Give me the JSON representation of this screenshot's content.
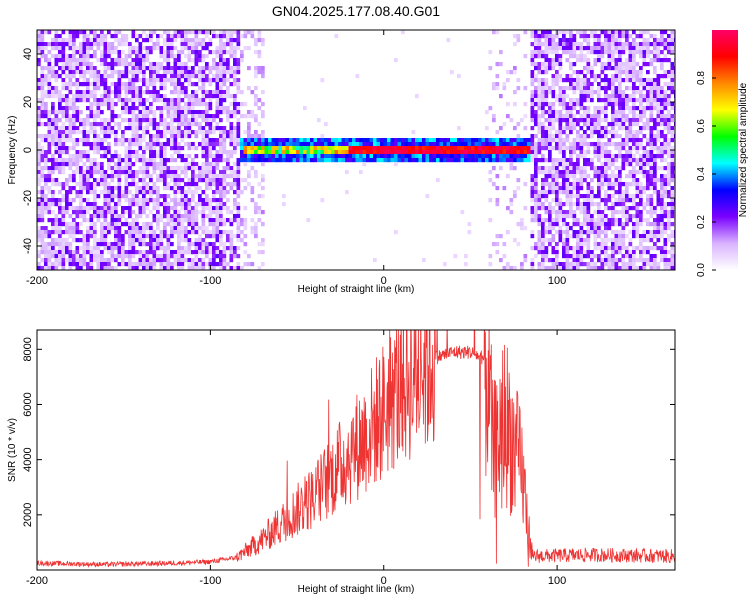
{
  "title": "GN04.2025.177.08.40.G01",
  "chart_data": [
    {
      "type": "heatmap",
      "xlabel": "Height of straight line (km)",
      "ylabel": "Frequency (Hz)",
      "xlim": [
        -200,
        168
      ],
      "ylim": [
        -50,
        50
      ],
      "xticks": [
        -200,
        -100,
        0,
        100
      ],
      "yticks": [
        -40,
        -20,
        0,
        20,
        40
      ],
      "colorbar": {
        "label": "Normalized spectral amplitude",
        "range": [
          0,
          1
        ],
        "ticks": [
          "0.0",
          "0.2",
          "0.4",
          "0.6",
          "0.8"
        ],
        "colors": [
          "#ffffff",
          "#d9b3ff",
          "#7a00ff",
          "#0000ff",
          "#00ffff",
          "#00ff00",
          "#ffff00",
          "#ff8800",
          "#ff0000",
          "#ff0066"
        ]
      },
      "regions": [
        {
          "x": [
            -200,
            -82
          ],
          "y": [
            -50,
            50
          ],
          "level": 0.2,
          "desc": "noise"
        },
        {
          "x": [
            -82,
            87
          ],
          "y": [
            -1,
            1
          ],
          "level": 0.95,
          "desc": "carrier"
        },
        {
          "x": [
            85,
            168
          ],
          "y": [
            -50,
            50
          ],
          "level": 0.2,
          "desc": "noise"
        }
      ]
    },
    {
      "type": "line",
      "xlabel": "Height of straight line (km)",
      "ylabel": "SNR (10 * v/v)",
      "xlim": [
        -200,
        168
      ],
      "ylim": [
        0,
        8700
      ],
      "xticks": [
        -200,
        -100,
        0,
        100
      ],
      "yticks": [
        2000,
        4000,
        6000,
        8000
      ],
      "series": [
        {
          "color": "#ee3333",
          "profile": [
            [
              -200,
              250
            ],
            [
              -160,
              200
            ],
            [
              -120,
              250
            ],
            [
              -100,
              300
            ],
            [
              -85,
              450
            ],
            [
              -70,
              1100
            ],
            [
              -55,
              1900
            ],
            [
              -40,
              2700
            ],
            [
              -25,
              3800
            ],
            [
              -10,
              4900
            ],
            [
              0,
              5800
            ],
            [
              10,
              6700
            ],
            [
              20,
              7300
            ],
            [
              30,
              7700
            ],
            [
              40,
              7900
            ],
            [
              50,
              7900
            ],
            [
              57,
              7700
            ],
            [
              60,
              7200
            ],
            [
              63,
              4200
            ],
            [
              70,
              5500
            ],
            [
              80,
              3500
            ],
            [
              84,
              1200
            ],
            [
              86,
              500
            ],
            [
              120,
              550
            ],
            [
              168,
              500
            ]
          ]
        }
      ]
    }
  ]
}
